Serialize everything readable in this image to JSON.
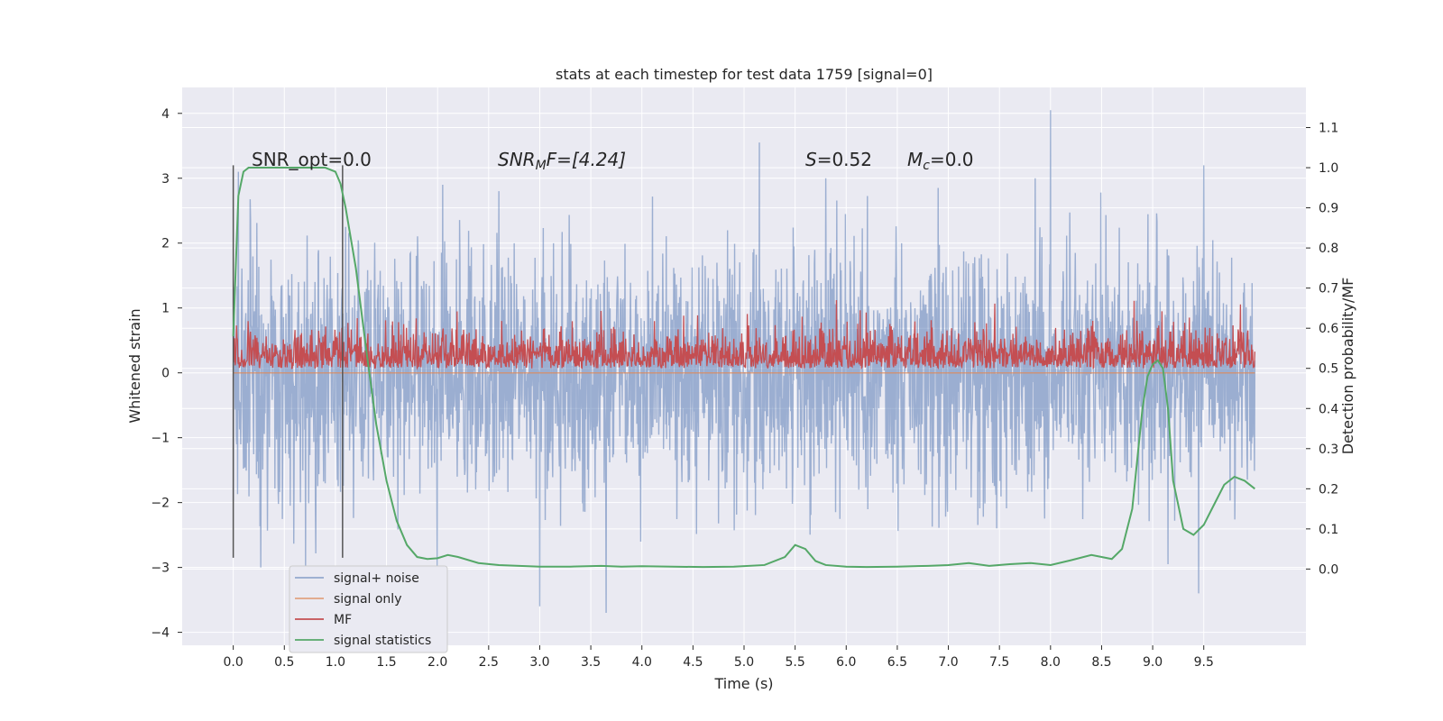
{
  "chart_data": {
    "type": "line",
    "title": "stats at each timestep for test data 1759 [signal=0]",
    "xlabel": "Time (s)",
    "ylabel_left": "Whitened strain",
    "ylabel_right": "Detection probability/MF",
    "xlim": [
      -0.5,
      10.5
    ],
    "ylim_left": [
      -4.2,
      4.4
    ],
    "ylim_right": [
      -0.19,
      1.2
    ],
    "x_ticks": [
      0.0,
      0.5,
      1.0,
      1.5,
      2.0,
      2.5,
      3.0,
      3.5,
      4.0,
      4.5,
      5.0,
      5.5,
      6.0,
      6.5,
      7.0,
      7.5,
      8.0,
      8.5,
      9.0,
      9.5
    ],
    "x_tick_labels": [
      "0.0",
      "0.5",
      "1.0",
      "1.5",
      "2.0",
      "2.5",
      "3.0",
      "3.5",
      "4.0",
      "4.5",
      "5.0",
      "5.5",
      "6.0",
      "6.5",
      "7.0",
      "7.5",
      "8.0",
      "8.5",
      "9.0",
      "9.5"
    ],
    "y_left_ticks": [
      4,
      3,
      2,
      1,
      0,
      -1,
      -2,
      -3,
      -4
    ],
    "y_left_tick_labels": [
      "4",
      "3",
      "2",
      "1",
      "0",
      "−1",
      "−2",
      "−3",
      "−4"
    ],
    "y_right_ticks": [
      1.1,
      1.0,
      0.9,
      0.8,
      0.7,
      0.6,
      0.5,
      0.4,
      0.3,
      0.2,
      0.1,
      0.0
    ],
    "y_right_tick_labels": [
      "1.1",
      "1.0",
      "0.9",
      "0.8",
      "0.7",
      "0.6",
      "0.5",
      "0.4",
      "0.3",
      "0.2",
      "0.1",
      "0.0"
    ],
    "grid": true,
    "legend_position": "lower-left",
    "colors": {
      "signal_noise": "#4c72b0",
      "signal_only": "#dd8452",
      "mf": "#c44e52",
      "stats": "#55a868",
      "background": "#eaeaf2",
      "grid": "#ffffff",
      "vline": "#555555"
    },
    "annotations": {
      "snr_opt": "SNR_opt=0.0",
      "snr_mf_sym": "SNR",
      "snr_mf_sub": "M",
      "snr_mf_rest": "F=[4.24]",
      "s_sym": "S",
      "s_rest": "=0.52",
      "mc_sym": "M",
      "mc_sub": "c",
      "mc_rest": "=0.0"
    },
    "vertical_lines": {
      "x": [
        0.0,
        1.07
      ],
      "y_range": [
        -2.85,
        3.2
      ]
    },
    "series": [
      {
        "name": "signal+ noise",
        "axis": "left",
        "x_range": [
          0.0,
          10.0
        ],
        "description_values": {
          "typical_min": -1.6,
          "typical_max": 1.5,
          "peak_max": 4.05,
          "peak_min": -3.7
        },
        "peaks": [
          [
            0.05,
            3.1
          ],
          [
            1.1,
            2.25
          ],
          [
            2.05,
            2.9
          ],
          [
            3.0,
            -3.6
          ],
          [
            3.65,
            -3.7
          ],
          [
            5.15,
            3.55
          ],
          [
            5.8,
            3.0
          ],
          [
            8.0,
            4.05
          ],
          [
            9.15,
            -2.95
          ],
          [
            9.5,
            3.2
          ],
          [
            9.45,
            -3.4
          ],
          [
            2.6,
            2.8
          ],
          [
            7.85,
            3.0
          ],
          [
            6.9,
            2.85
          ]
        ]
      },
      {
        "name": "signal only",
        "axis": "left",
        "x": [
          0.0,
          10.0
        ],
        "values": [
          0.0,
          0.0
        ]
      },
      {
        "name": "MF",
        "axis": "right",
        "x_range": [
          0.0,
          10.0
        ],
        "description_values": {
          "base": 0.5,
          "typical_max": 0.62,
          "peak_max": 0.67
        }
      },
      {
        "name": "signal statistics",
        "axis": "right",
        "x": [
          0.0,
          0.05,
          0.1,
          0.15,
          0.25,
          0.4,
          0.6,
          0.8,
          0.9,
          1.0,
          1.05,
          1.1,
          1.2,
          1.3,
          1.4,
          1.5,
          1.6,
          1.7,
          1.8,
          1.9,
          2.0,
          2.1,
          2.2,
          2.4,
          2.6,
          2.8,
          3.0,
          3.3,
          3.6,
          3.8,
          4.0,
          4.3,
          4.6,
          4.9,
          5.2,
          5.4,
          5.5,
          5.6,
          5.7,
          5.8,
          6.0,
          6.2,
          6.5,
          6.8,
          7.0,
          7.2,
          7.4,
          7.6,
          7.8,
          8.0,
          8.2,
          8.4,
          8.5,
          8.6,
          8.7,
          8.8,
          8.9,
          8.95,
          9.0,
          9.05,
          9.1,
          9.15,
          9.2,
          9.3,
          9.4,
          9.5,
          9.6,
          9.7,
          9.8,
          9.9,
          10.0
        ],
        "values": [
          0.58,
          0.93,
          0.99,
          1.0,
          1.0,
          1.0,
          1.0,
          1.0,
          1.0,
          0.99,
          0.96,
          0.9,
          0.75,
          0.55,
          0.36,
          0.22,
          0.12,
          0.06,
          0.03,
          0.025,
          0.027,
          0.035,
          0.03,
          0.015,
          0.01,
          0.008,
          0.006,
          0.006,
          0.008,
          0.006,
          0.007,
          0.006,
          0.005,
          0.006,
          0.01,
          0.03,
          0.06,
          0.05,
          0.02,
          0.01,
          0.006,
          0.005,
          0.006,
          0.008,
          0.01,
          0.015,
          0.008,
          0.012,
          0.015,
          0.01,
          0.022,
          0.035,
          0.03,
          0.025,
          0.05,
          0.15,
          0.4,
          0.48,
          0.51,
          0.52,
          0.5,
          0.4,
          0.22,
          0.1,
          0.085,
          0.11,
          0.16,
          0.21,
          0.23,
          0.22,
          0.2
        ]
      }
    ]
  }
}
